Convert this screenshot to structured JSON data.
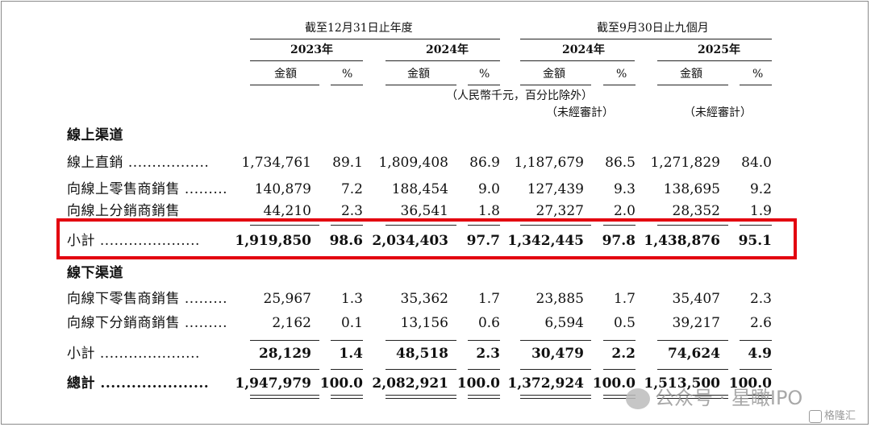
{
  "header": {
    "period_full_year": "截至12月31日止年度",
    "period_nine_months": "截至9月30日止九個月",
    "years": [
      "2023年",
      "2024年",
      "2024年",
      "2025年"
    ],
    "amount_label": "金額",
    "percent_label": "%",
    "unit_note": "（人民幣千元，百分比除外）",
    "unaudited": "（未經審計）"
  },
  "sections": {
    "online": "線上渠道",
    "offline": "線下渠道"
  },
  "rows": {
    "online_direct": {
      "label": "線上直銷",
      "values": [
        "1,734,761",
        "89.1",
        "1,809,408",
        "86.9",
        "1,187,679",
        "86.5",
        "1,271,829",
        "84.0"
      ]
    },
    "online_retail": {
      "label": "向線上零售商銷售",
      "values": [
        "140,879",
        "7.2",
        "188,454",
        "9.0",
        "127,439",
        "9.3",
        "138,695",
        "9.2"
      ]
    },
    "online_distrib": {
      "label": "向線上分銷商銷售",
      "values": [
        "44,210",
        "2.3",
        "36,541",
        "1.8",
        "27,327",
        "2.0",
        "28,352",
        "1.9"
      ]
    },
    "online_subtotal": {
      "label": "小計",
      "values": [
        "1,919,850",
        "98.6",
        "2,034,403",
        "97.7",
        "1,342,445",
        "97.8",
        "1,438,876",
        "95.1"
      ]
    },
    "offline_retail": {
      "label": "向線下零售商銷售",
      "values": [
        "25,967",
        "1.3",
        "35,362",
        "1.7",
        "23,885",
        "1.7",
        "35,407",
        "2.3"
      ]
    },
    "offline_distrib": {
      "label": "向線下分銷商銷售",
      "values": [
        "2,162",
        "0.1",
        "13,156",
        "0.6",
        "6,594",
        "0.5",
        "39,217",
        "2.6"
      ]
    },
    "offline_subtotal": {
      "label": "小計",
      "values": [
        "28,129",
        "1.4",
        "48,518",
        "2.3",
        "30,479",
        "2.2",
        "74,624",
        "4.9"
      ]
    },
    "total": {
      "label": "總計",
      "values": [
        "1,947,979",
        "100.0",
        "2,082,921",
        "100.0",
        "1,372,924",
        "100.0",
        "1,513,500",
        "100.0"
      ]
    }
  },
  "watermark": {
    "wechat": "公众号 · 星瞰IPO",
    "brand": "格隆汇"
  },
  "colors": {
    "highlight": "#e3000f",
    "text": "#111111",
    "watermark": "#9a9a9a"
  }
}
